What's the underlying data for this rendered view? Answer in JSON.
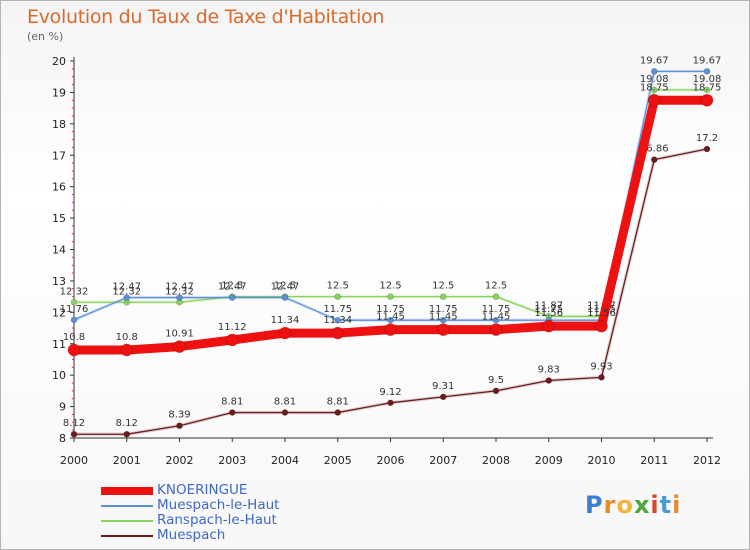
{
  "title": "Evolution du Taux de Taxe d'Habitation",
  "subtitle": "(en %)",
  "brand": "Proxiti",
  "colors": {
    "title": "#d96a2c",
    "knoeringue": "#ee1111",
    "muespach_le_haut": "#5b8fd6",
    "ranspach_le_haut": "#86d45a",
    "muespach": "#6b1c1c",
    "legend_text": "#3f67c8"
  },
  "chart_data": {
    "type": "line",
    "title": "Evolution du Taux de Taxe d'Habitation",
    "ylabel": "(en %)",
    "xlabel": "",
    "x": [
      "2000",
      "2001",
      "2002",
      "2003",
      "2004",
      "2005",
      "2006",
      "2007",
      "2008",
      "2009",
      "2010",
      "2011",
      "2012"
    ],
    "ylim": [
      8,
      20
    ],
    "yticks": [
      "8",
      "9",
      "10",
      "11",
      "12",
      "13",
      "14",
      "15",
      "16",
      "17",
      "18",
      "19",
      "20"
    ],
    "grid": false,
    "legend": "bottom-left",
    "series": [
      {
        "name": "Muespach",
        "color": "#6b1c1c",
        "width": 1.3,
        "values": [
          8.12,
          8.12,
          8.39,
          8.81,
          8.81,
          8.81,
          9.12,
          9.31,
          9.5,
          9.83,
          9.93,
          16.86,
          17.2
        ],
        "labels": [
          "8.12",
          "8.12",
          "8.39",
          "8.81",
          "8.81",
          "8.81",
          "9.12",
          "9.31",
          "9.5",
          "9.83",
          "9.93",
          "16.86",
          "17.2"
        ]
      },
      {
        "name": "Ranspach-le-Haut",
        "color": "#86d45a",
        "width": 1.3,
        "values": [
          12.32,
          12.32,
          12.32,
          12.5,
          12.5,
          12.5,
          12.5,
          12.5,
          12.5,
          11.87,
          11.87,
          19.08,
          19.08
        ],
        "labels": [
          "12.32",
          "12.32",
          "12.32",
          "12.5",
          "12.5",
          "12.5",
          "12.5",
          "12.5",
          "12.5",
          "11.87",
          "11.87",
          "19.08",
          "19.08"
        ]
      },
      {
        "name": "Muespach-le-Haut",
        "color": "#5b8fd6",
        "width": 1.3,
        "values": [
          11.76,
          12.47,
          12.47,
          12.47,
          12.47,
          11.75,
          11.75,
          11.75,
          11.75,
          11.75,
          11.75,
          19.67,
          19.67
        ],
        "labels": [
          "11.76",
          "12.47",
          "12.47",
          "12.47",
          "12.47",
          "11.75",
          "11.75",
          "11.75",
          "11.75",
          "11.75",
          "11.75",
          "19.67",
          "19.67"
        ]
      },
      {
        "name": "KNOERINGUE",
        "color": "#ee1111",
        "width": 9,
        "values": [
          10.8,
          10.8,
          10.91,
          11.12,
          11.34,
          11.34,
          11.45,
          11.45,
          11.45,
          11.56,
          11.56,
          18.75,
          18.75
        ],
        "labels": [
          "10.8",
          "10.8",
          "10.91",
          "11.12",
          "11.34",
          "11.34",
          "11.45",
          "11.45",
          "11.45",
          "11.56",
          "11.56",
          "18.75",
          "18.75"
        ]
      }
    ]
  },
  "legend": [
    {
      "label": "KNOERINGUE",
      "color": "#ee1111",
      "thickness": 8
    },
    {
      "label": "Muespach-le-Haut",
      "color": "#5b8fd6",
      "thickness": 2
    },
    {
      "label": "Ranspach-le-Haut",
      "color": "#86d45a",
      "thickness": 2
    },
    {
      "label": "Muespach",
      "color": "#6b1c1c",
      "thickness": 2
    }
  ]
}
